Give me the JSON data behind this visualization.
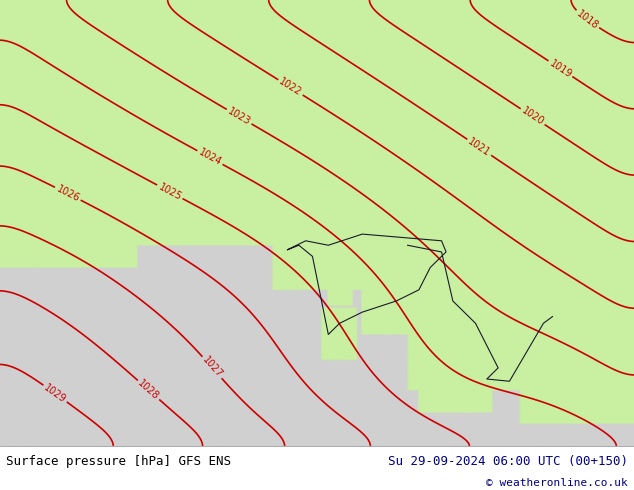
{
  "title_left": "Surface pressure [hPa] GFS ENS",
  "title_right": "Su 29-09-2024 06:00 UTC (00+150)",
  "copyright": "© weatheronline.co.uk",
  "land_color": "#c8f0a0",
  "sea_color": "#d0d0d0",
  "contour_color": "#cc0000",
  "contour_label_color": "#cc0000",
  "border_color": "#1a1a2e",
  "minor_border_color": "#9090a0",
  "bottom_bar_color": "#ffffff",
  "text_color_left": "#000000",
  "text_color_right": "#00008b",
  "pressure_levels": [
    1018,
    1019,
    1020,
    1021,
    1022,
    1023,
    1024,
    1025,
    1026,
    1027,
    1028,
    1029
  ],
  "figsize": [
    6.34,
    4.9
  ],
  "dpi": 100
}
